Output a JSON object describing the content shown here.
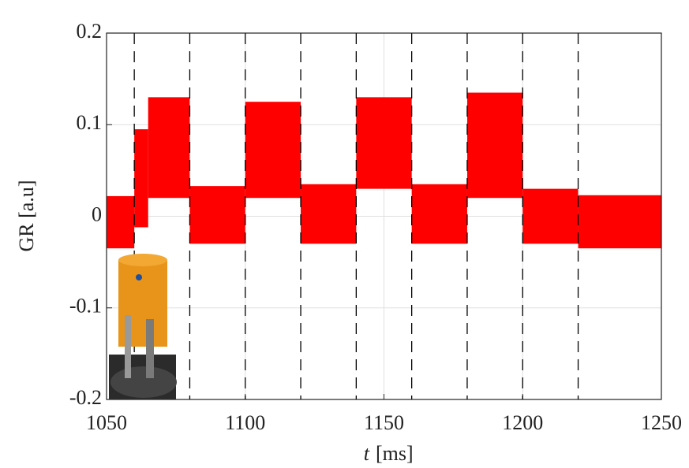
{
  "chart_data": {
    "type": "band",
    "ylabel": "GR [a.u]",
    "xlabel": {
      "symbol": "t",
      "unit": "[ms]"
    },
    "xlim": [
      1050,
      1250
    ],
    "xticks": [
      1050,
      1100,
      1150,
      1200,
      1250
    ],
    "ylim": [
      -0.2,
      0.2
    ],
    "yticks": [
      -0.2,
      -0.1,
      0,
      0.1,
      0.2
    ],
    "grid": true,
    "color": "#ff0000",
    "divider_color": "#000000",
    "dividers": [
      1060,
      1080,
      1100,
      1120,
      1140,
      1160,
      1180,
      1200,
      1220
    ],
    "segments": [
      {
        "x": [
          1050,
          1060
        ],
        "low": -0.035,
        "high": 0.022
      },
      {
        "x": [
          1060,
          1065
        ],
        "low": -0.012,
        "high": 0.095
      },
      {
        "x": [
          1065,
          1080
        ],
        "low": 0.02,
        "high": 0.13
      },
      {
        "x": [
          1080,
          1100
        ],
        "low": -0.03,
        "high": 0.033
      },
      {
        "x": [
          1100,
          1120
        ],
        "low": 0.02,
        "high": 0.125
      },
      {
        "x": [
          1120,
          1140
        ],
        "low": -0.03,
        "high": 0.035
      },
      {
        "x": [
          1140,
          1160
        ],
        "low": 0.03,
        "high": 0.13
      },
      {
        "x": [
          1160,
          1180
        ],
        "low": -0.03,
        "high": 0.035
      },
      {
        "x": [
          1180,
          1200
        ],
        "low": 0.02,
        "high": 0.135
      },
      {
        "x": [
          1200,
          1220
        ],
        "low": -0.03,
        "high": 0.03
      },
      {
        "x": [
          1220,
          1250
        ],
        "low": -0.035,
        "high": 0.023
      }
    ]
  }
}
